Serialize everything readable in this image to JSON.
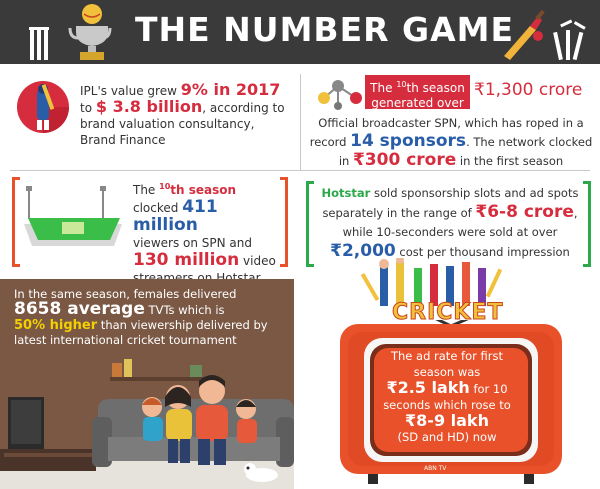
{
  "header": {
    "title": "THE NUMBER GAME"
  },
  "panel1": {
    "line1_pre": "IPL's value grew ",
    "line1_hl": "9% in 2017",
    "line2_pre": "to ",
    "line2_hl": "$ 3.8 billion",
    "line2_post": ", according to",
    "line3": "brand valuation consultancy,",
    "line4": "Brand Finance"
  },
  "panel2": {
    "badge_line1_pre": "The ",
    "badge_sup": "10",
    "badge_line1_post": "th season",
    "badge_line2": "generated over",
    "amount": "₹1,300 crore",
    "line1": "Official broadcaster SPN, which has roped in a",
    "line2_pre": "record ",
    "line2_hl": "14 sponsors",
    "line2_post": ". The network clocked",
    "line3_pre": "in ",
    "line3_hl": "₹300 crore",
    "line3_post": " in the first season"
  },
  "panel3": {
    "line1_pre": "The ",
    "line1_sup": "10",
    "line1_hl": "th season",
    "line2_pre": "clocked ",
    "line2_hl": "411 million",
    "line3": "viewers on SPN and",
    "line4_hl": "130 million",
    "line4_post": " video",
    "line5": "streamers on Hotstar"
  },
  "panel4": {
    "line1_hl": "Hotstar",
    "line1_post": " sold sponsorship slots and ad spots",
    "line2_pre": "separately in the range of ",
    "line2_hl": "₹6-8 crore",
    "line2_post": ",",
    "line3": "while 10-seconders were sold at over",
    "line4_hl": "₹2,000",
    "line4_post": " cost per thousand impression"
  },
  "panel5": {
    "line1": "In the same season, females delivered",
    "line2_hl": "8658 average",
    "line2_post": " TVTs which is",
    "line3_hl": "50% higher",
    "line3_post": " than viewership delivered by",
    "line4": "latest international cricket tournament"
  },
  "panel6": {
    "logo": "CRICKET",
    "line1": "The ad rate for first",
    "line2": "season was",
    "line3_hl": "₹2.5 lakh",
    "line3_post": " for 10",
    "line4": "seconds which rose to",
    "line5_hl": "₹8-9 lakh",
    "line6": "(SD and HD) now",
    "tv_brand": "ABN TV"
  },
  "colors": {
    "header_bg": "#3a3a3a",
    "accent_red": "#d62d3e",
    "accent_blue": "#2a5da8",
    "accent_green": "#2da84a",
    "accent_orange": "#e8512a",
    "highlight_yellow": "#f5d000",
    "room_bg": "#7a5844"
  },
  "icons": [
    "stumps-icon",
    "trophy-icon",
    "bat-ball-icon",
    "batsman-icon",
    "network-icon",
    "stadium-icon",
    "family-on-sofa-illustration",
    "retro-tv-icon",
    "cricket-players-illustration"
  ]
}
